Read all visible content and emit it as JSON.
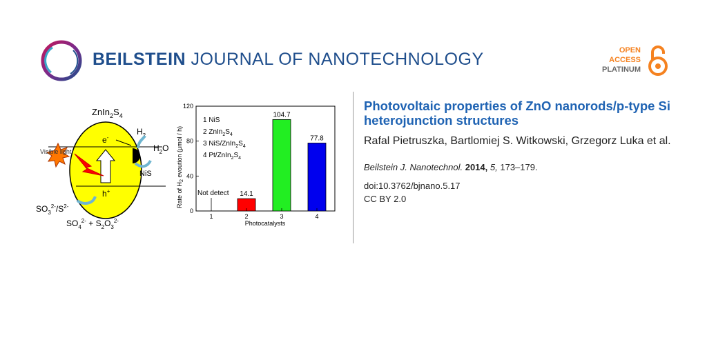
{
  "journal": {
    "name_bold": "BEILSTEIN",
    "name_light": "JOURNAL OF NANOTECHNOLOGY",
    "brand_color": "#1f4e8c",
    "icon": "beilstein-ring-logo"
  },
  "open_access": {
    "line1": "OPEN",
    "line2": "ACCESS",
    "line3": "PLATINUM",
    "accent_color": "#f58220",
    "icon": "open-lock-icon"
  },
  "graphic": {
    "scheme": {
      "title": "ZnIn",
      "title_sub1": "2",
      "title_mid": "S",
      "title_sub2": "4",
      "electron": "e",
      "electron_sup": "-",
      "hole": "h",
      "hole_sup": "+",
      "h2": "H",
      "h2_sub": "2",
      "h2o": "H",
      "h2o_sub": "2",
      "h2o_end": "O",
      "nis": "NiS",
      "visible_light": "Visible light",
      "so3": "SO",
      "so3_sub": "3",
      "so3_sup": "2-",
      "s2": "/S",
      "s2_sup": "2-",
      "so4": "SO",
      "so4_sub": "4",
      "so4_sup": "2-",
      "plus": " + S",
      "s2o3_sub1": "2",
      "s2o3_o": "O",
      "s2o3_sub2": "3",
      "s2o3_sup": "2-"
    },
    "chart_data": {
      "type": "bar",
      "categories": [
        "1",
        "2",
        "3",
        "4"
      ],
      "values": [
        0,
        14.1,
        104.7,
        77.8
      ],
      "value_labels": [
        "",
        "14.1",
        "104.7",
        "77.8"
      ],
      "annotation": "Not detect",
      "colors": [
        "#000000",
        "#ff0000",
        "#22ee22",
        "#0000ee"
      ],
      "xlabel": "Photocatalysts",
      "ylabel": "Rate of H",
      "ylabel_sub": "2",
      "ylabel_end": " evoution (μmol / h)",
      "ylim": [
        0,
        120
      ],
      "yticks": [
        "0",
        "40",
        "80",
        "120"
      ],
      "legend": [
        {
          "text": "1 NiS"
        },
        {
          "text": "2 ZnIn",
          "sub1": "2",
          "mid": "S",
          "sub2": "4"
        },
        {
          "text": "3 NiS/ZnIn",
          "sub1": "2",
          "mid": "S",
          "sub2": "4"
        },
        {
          "text": "4 Pt/ZnIn",
          "sub1": "2",
          "mid": "S",
          "sub2": "4"
        }
      ]
    }
  },
  "article": {
    "title": "Photovoltaic properties of ZnO nanorods/p-type Si heterojunction structures",
    "authors": "Rafal Pietruszka, Bartlomiej S. Witkowski, Grzegorz Luka et al.",
    "journal_abbrev": "Beilstein J. Nanotechnol.",
    "year": "2014,",
    "volume": "5,",
    "pages": "173–179.",
    "doi": "doi:10.3762/bjnano.5.17",
    "license": "CC BY 2.0"
  }
}
